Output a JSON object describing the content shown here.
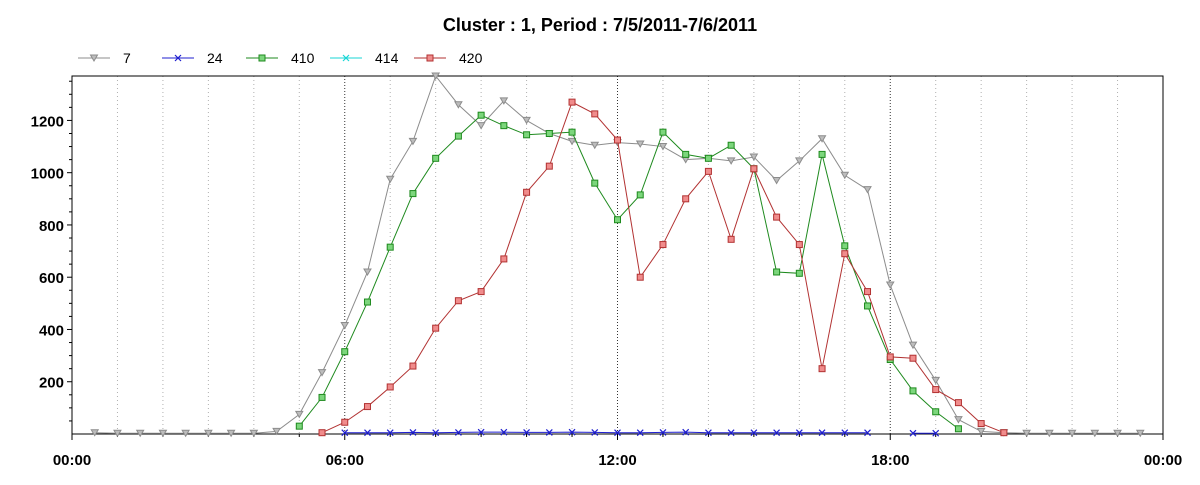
{
  "chart_data": {
    "type": "line",
    "title": "Cluster : 1, Period : 7/5/2011-7/6/2011",
    "xlabel": "",
    "ylabel": "",
    "x_ticks": [
      "00:00",
      "06:00",
      "12:00",
      "18:00",
      "00:00"
    ],
    "y_ticks": [
      "200",
      "400",
      "600",
      "800",
      "1000",
      "1200"
    ],
    "xlim_hours": [
      0,
      24
    ],
    "ylim": [
      0,
      1370
    ],
    "grid": "vertical dotted",
    "legend_position": "top-left",
    "x_hours": [
      0.5,
      1,
      1.5,
      2,
      2.5,
      3,
      3.5,
      4,
      4.5,
      5,
      5.5,
      6,
      6.5,
      7,
      7.5,
      8,
      8.5,
      9,
      9.5,
      10,
      10.5,
      11,
      11.5,
      12,
      12.5,
      13,
      13.5,
      14,
      14.5,
      15,
      15.5,
      16,
      16.5,
      17,
      17.5,
      18,
      18.5,
      19,
      19.5,
      20,
      20.5,
      21,
      21.5,
      22,
      22.5,
      23,
      23.5
    ],
    "series": [
      {
        "name": "7",
        "color": "#8c8c8c",
        "marker": "triangle-down",
        "values": [
          5,
          3,
          3,
          3,
          3,
          3,
          3,
          3,
          10,
          75,
          235,
          415,
          620,
          975,
          1120,
          1370,
          1260,
          1180,
          1275,
          1200,
          1150,
          1120,
          1105,
          1115,
          1110,
          1100,
          1050,
          1055,
          1045,
          1060,
          970,
          1045,
          1130,
          990,
          935,
          570,
          340,
          205,
          55,
          10,
          5,
          3,
          3,
          3,
          3,
          3,
          3
        ]
      },
      {
        "name": "24",
        "color": "#1f1fcf",
        "marker": "x",
        "values": [
          null,
          null,
          null,
          null,
          null,
          null,
          null,
          null,
          null,
          null,
          null,
          5,
          5,
          5,
          6,
          5,
          6,
          7,
          7,
          6,
          6,
          7,
          6,
          5,
          5,
          6,
          7,
          5,
          5,
          5,
          5,
          5,
          5,
          5,
          5,
          null,
          3,
          3,
          null,
          null,
          null,
          null,
          null,
          null,
          null,
          null,
          null
        ]
      },
      {
        "name": "410",
        "color": "#1e8a1e",
        "marker": "square",
        "fill": "#7cd67c",
        "values": [
          null,
          null,
          null,
          null,
          null,
          null,
          null,
          null,
          null,
          30,
          140,
          315,
          505,
          715,
          920,
          1055,
          1140,
          1220,
          1180,
          1145,
          1150,
          1155,
          960,
          820,
          915,
          1155,
          1070,
          1055,
          1105,
          1015,
          620,
          615,
          1070,
          720,
          490,
          285,
          165,
          85,
          20,
          null,
          null,
          null,
          null,
          null,
          null,
          null,
          null
        ]
      },
      {
        "name": "414",
        "color": "#19d6d6",
        "marker": "x",
        "values": []
      },
      {
        "name": "420",
        "color": "#b23232",
        "marker": "square",
        "fill": "#f08c8c",
        "values": [
          null,
          null,
          null,
          null,
          null,
          null,
          null,
          null,
          null,
          null,
          5,
          45,
          105,
          180,
          260,
          405,
          510,
          545,
          670,
          925,
          1025,
          1270,
          1225,
          1125,
          600,
          725,
          900,
          1005,
          745,
          1015,
          830,
          725,
          250,
          690,
          545,
          295,
          290,
          170,
          120,
          40,
          5,
          null,
          null,
          null,
          null,
          null,
          null
        ]
      }
    ]
  }
}
